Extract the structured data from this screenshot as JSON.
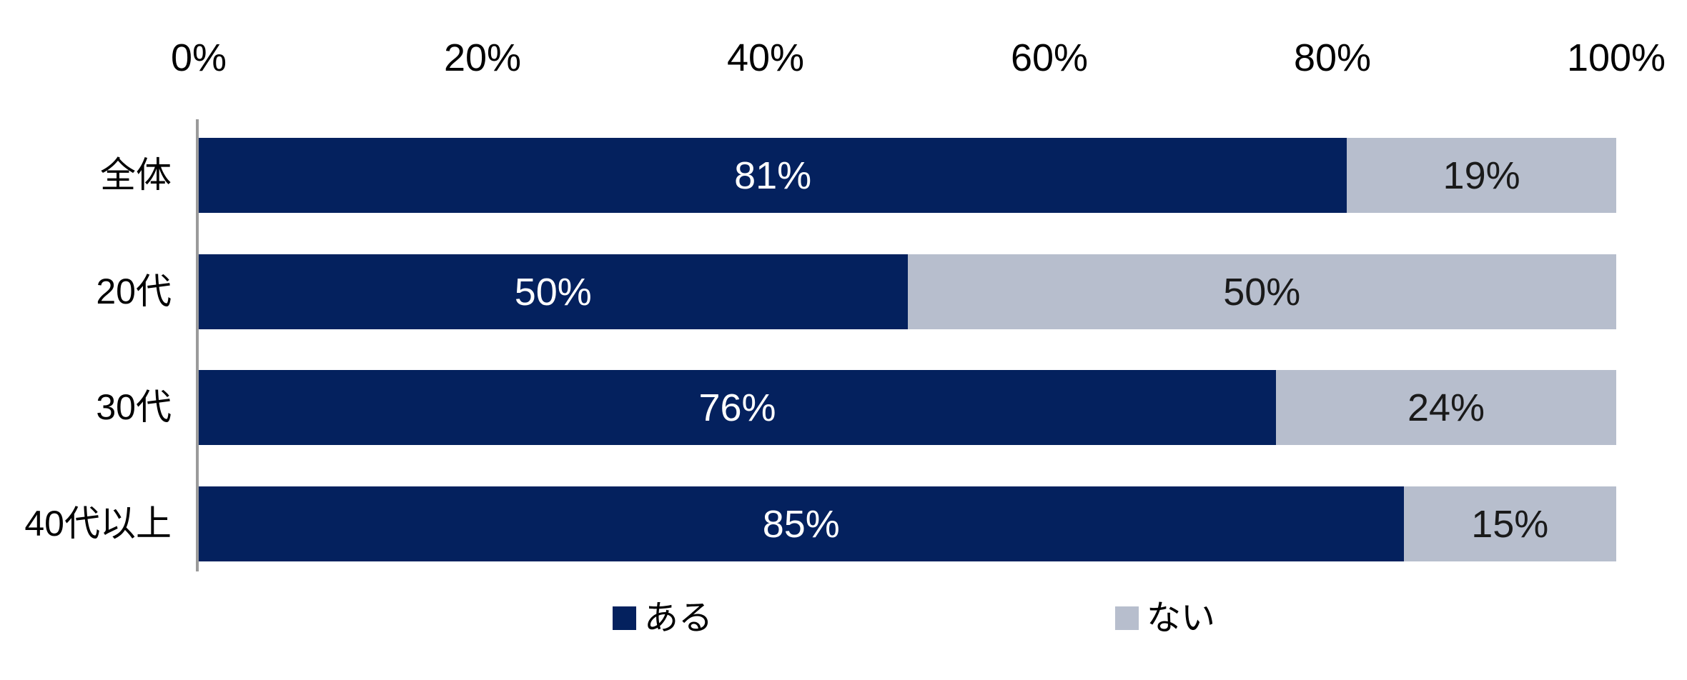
{
  "chart_data": {
    "type": "bar",
    "orientation": "horizontal-stacked",
    "title": "",
    "categories": [
      "全体",
      "20代",
      "30代",
      "40代以上"
    ],
    "series": [
      {
        "name": "ある",
        "color": "#04215E",
        "label_color": "#FFFFFF",
        "values": [
          81,
          50,
          76,
          85
        ],
        "labels": [
          "81%",
          "50%",
          "76%",
          "85%"
        ]
      },
      {
        "name": "ない",
        "color": "#B7BECD",
        "label_color": "#1A1A1A",
        "values": [
          19,
          50,
          24,
          15
        ],
        "labels": [
          "19%",
          "50%",
          "24%",
          "15%"
        ]
      }
    ],
    "x_axis": {
      "position": "top",
      "min": 0,
      "max": 100,
      "ticks": [
        "0%",
        "20%",
        "40%",
        "60%",
        "80%",
        "100%"
      ],
      "tick_color": "#000000"
    },
    "y_axis": {
      "axis_line_color": "#9B9B9B"
    },
    "grid": false,
    "legend": {
      "position": "bottom",
      "items": [
        {
          "label": "ある",
          "color": "#04215E"
        },
        {
          "label": "ない",
          "color": "#B7BECD"
        }
      ]
    }
  }
}
